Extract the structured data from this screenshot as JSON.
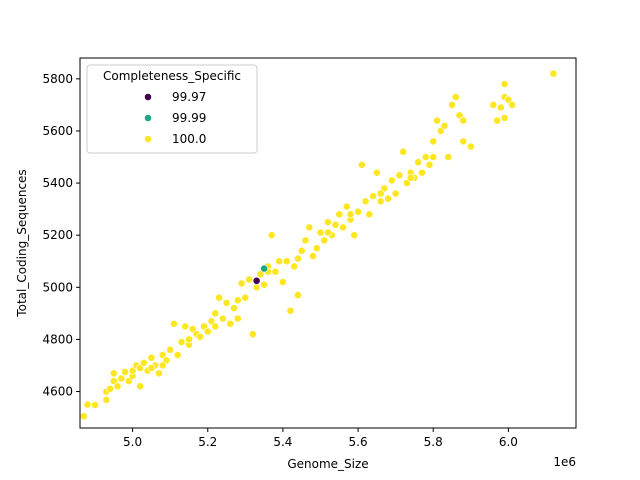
{
  "chart_data": {
    "type": "scatter",
    "title": "",
    "xlabel": "Genome_Size",
    "ylabel": "Total_Coding_Sequences",
    "x_offset_label": "1e6",
    "xlim": [
      4.86,
      6.18
    ],
    "ylim": [
      4460,
      5880
    ],
    "x_ticks": [
      5.0,
      5.2,
      5.4,
      5.6,
      5.8,
      6.0
    ],
    "x_tick_labels": [
      "5.0",
      "5.2",
      "5.4",
      "5.6",
      "5.8",
      "6.0"
    ],
    "y_ticks": [
      4600,
      4800,
      5000,
      5200,
      5400,
      5600,
      5800
    ],
    "y_tick_labels": [
      "4600",
      "4800",
      "5000",
      "5200",
      "5400",
      "5600",
      "5800"
    ],
    "grid": false,
    "legend": {
      "title": "Completeness_Specific",
      "placement": "top-left",
      "entries": [
        {
          "label": "99.97",
          "color": "#440154"
        },
        {
          "label": "99.99",
          "color": "#21a585"
        },
        {
          "label": "100.0",
          "color": "#fde725"
        }
      ]
    },
    "series": [
      {
        "name": "99.97",
        "color": "#440154",
        "points": [
          [
            5.33,
            5025
          ]
        ]
      },
      {
        "name": "99.99",
        "color": "#21a585",
        "points": [
          [
            5.35,
            5072
          ]
        ]
      },
      {
        "name": "100.0",
        "color": "#fde725",
        "points": [
          [
            4.87,
            4505
          ],
          [
            4.88,
            4550
          ],
          [
            4.9,
            4548
          ],
          [
            4.93,
            4568
          ],
          [
            4.93,
            4600
          ],
          [
            4.94,
            4610
          ],
          [
            4.95,
            4640
          ],
          [
            4.95,
            4670
          ],
          [
            4.96,
            4620
          ],
          [
            4.97,
            4650
          ],
          [
            4.98,
            4675
          ],
          [
            4.99,
            4640
          ],
          [
            5.0,
            4660
          ],
          [
            5.0,
            4680
          ],
          [
            5.01,
            4700
          ],
          [
            5.02,
            4620
          ],
          [
            5.02,
            4690
          ],
          [
            5.03,
            4710
          ],
          [
            5.04,
            4680
          ],
          [
            5.05,
            4730
          ],
          [
            5.06,
            4700
          ],
          [
            5.07,
            4670
          ],
          [
            5.08,
            4740
          ],
          [
            5.09,
            4720
          ],
          [
            5.1,
            4760
          ],
          [
            5.11,
            4860
          ],
          [
            5.12,
            4740
          ],
          [
            5.13,
            4790
          ],
          [
            5.14,
            4850
          ],
          [
            5.15,
            4780
          ],
          [
            5.16,
            4840
          ],
          [
            5.17,
            4820
          ],
          [
            5.18,
            4810
          ],
          [
            5.19,
            4850
          ],
          [
            5.2,
            4830
          ],
          [
            5.21,
            4870
          ],
          [
            5.22,
            4900
          ],
          [
            5.23,
            4960
          ],
          [
            5.24,
            4880
          ],
          [
            5.25,
            4940
          ],
          [
            5.26,
            4860
          ],
          [
            5.27,
            4920
          ],
          [
            5.28,
            4880
          ],
          [
            5.29,
            5015
          ],
          [
            5.3,
            4960
          ],
          [
            5.31,
            5030
          ],
          [
            5.32,
            4820
          ],
          [
            5.33,
            5000
          ],
          [
            5.34,
            5050
          ],
          [
            5.35,
            5010
          ],
          [
            5.36,
            5080
          ],
          [
            5.37,
            5200
          ],
          [
            5.38,
            5060
          ],
          [
            5.39,
            5100
          ],
          [
            5.4,
            5020
          ],
          [
            5.41,
            5100
          ],
          [
            5.42,
            4910
          ],
          [
            5.43,
            5080
          ],
          [
            5.44,
            4970
          ],
          [
            5.45,
            5140
          ],
          [
            5.46,
            5180
          ],
          [
            5.47,
            5230
          ],
          [
            5.48,
            5120
          ],
          [
            5.49,
            5150
          ],
          [
            5.5,
            5210
          ],
          [
            5.51,
            5180
          ],
          [
            5.52,
            5250
          ],
          [
            5.53,
            5200
          ],
          [
            5.54,
            5240
          ],
          [
            5.55,
            5280
          ],
          [
            5.56,
            5230
          ],
          [
            5.57,
            5310
          ],
          [
            5.58,
            5260
          ],
          [
            5.59,
            5200
          ],
          [
            5.6,
            5290
          ],
          [
            5.61,
            5470
          ],
          [
            5.62,
            5330
          ],
          [
            5.63,
            5280
          ],
          [
            5.64,
            5350
          ],
          [
            5.65,
            5440
          ],
          [
            5.66,
            5330
          ],
          [
            5.67,
            5380
          ],
          [
            5.68,
            5340
          ],
          [
            5.69,
            5410
          ],
          [
            5.7,
            5360
          ],
          [
            5.71,
            5430
          ],
          [
            5.72,
            5520
          ],
          [
            5.73,
            5400
          ],
          [
            5.74,
            5440
          ],
          [
            5.75,
            5420
          ],
          [
            5.76,
            5480
          ],
          [
            5.77,
            5440
          ],
          [
            5.78,
            5500
          ],
          [
            5.79,
            5470
          ],
          [
            5.8,
            5560
          ],
          [
            5.81,
            5640
          ],
          [
            5.82,
            5600
          ],
          [
            5.83,
            5620
          ],
          [
            5.84,
            5500
          ],
          [
            5.85,
            5700
          ],
          [
            5.86,
            5730
          ],
          [
            5.87,
            5660
          ],
          [
            5.88,
            5640
          ],
          [
            5.88,
            5560
          ],
          [
            5.9,
            5540
          ],
          [
            5.96,
            5700
          ],
          [
            5.97,
            5640
          ],
          [
            5.98,
            5690
          ],
          [
            5.99,
            5650
          ],
          [
            5.99,
            5730
          ],
          [
            5.99,
            5780
          ],
          [
            6.0,
            5720
          ],
          [
            6.01,
            5700
          ],
          [
            6.12,
            5820
          ],
          [
            5.05,
            4690
          ],
          [
            5.08,
            4700
          ],
          [
            5.15,
            4800
          ],
          [
            5.22,
            4850
          ],
          [
            5.28,
            4950
          ],
          [
            5.36,
            5060
          ],
          [
            5.44,
            5110
          ],
          [
            5.52,
            5210
          ],
          [
            5.58,
            5280
          ],
          [
            5.66,
            5360
          ],
          [
            5.74,
            5420
          ],
          [
            5.8,
            5500
          ]
        ]
      }
    ]
  }
}
